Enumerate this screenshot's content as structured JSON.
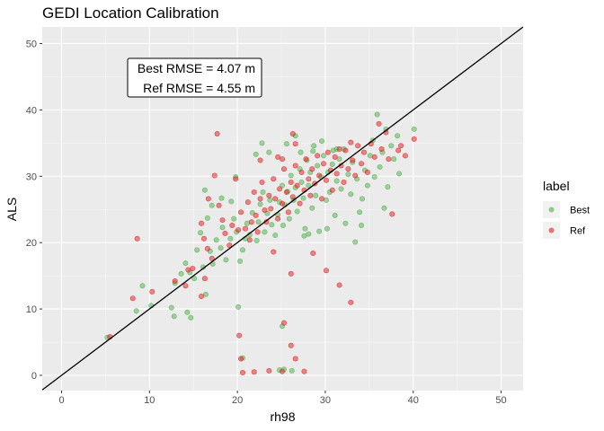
{
  "chart_data": {
    "type": "scatter",
    "title": "GEDI Location Calibration",
    "xlabel": "rh98",
    "ylabel": "ALS",
    "xlim": [
      -2.2,
      52.5
    ],
    "ylim": [
      -2.3,
      52.5
    ],
    "x_ticks": [
      0,
      10,
      20,
      30,
      40,
      50
    ],
    "y_ticks": [
      0,
      10,
      20,
      30,
      40,
      50
    ],
    "x_tick_labels": [
      "0",
      "10",
      "20",
      "30",
      "40",
      "50"
    ],
    "y_tick_labels": [
      "0",
      "10",
      "20",
      "30",
      "40",
      "50"
    ],
    "grid": true,
    "legend": {
      "title": "label",
      "position": "right"
    },
    "reference_line": {
      "type": "identity",
      "slope": 1,
      "intercept": 0,
      "color": "#000000"
    },
    "annotations": [
      "Best RMSE = 4.07 m",
      "Ref RMSE = 4.55 m"
    ],
    "series": [
      {
        "name": "Best",
        "color": "#4daf4a",
        "points": [
          [
            5.2,
            5.7
          ],
          [
            8.5,
            9.7
          ],
          [
            9.2,
            13.5
          ],
          [
            10.2,
            10.5
          ],
          [
            12.5,
            10.2
          ],
          [
            12.8,
            8.9
          ],
          [
            14.3,
            9.5
          ],
          [
            14.7,
            8.7
          ],
          [
            12.9,
            13.9
          ],
          [
            13.6,
            15.3
          ],
          [
            14.1,
            16.9
          ],
          [
            14.6,
            15.5
          ],
          [
            15.1,
            14.6
          ],
          [
            15.4,
            18.9
          ],
          [
            16.1,
            16.3
          ],
          [
            16.4,
            12.2
          ],
          [
            16.9,
            18.7
          ],
          [
            17.2,
            16.8
          ],
          [
            15.8,
            21.5
          ],
          [
            16.6,
            23.7
          ],
          [
            17.6,
            20.4
          ],
          [
            18.1,
            19.2
          ],
          [
            18.3,
            22.3
          ],
          [
            18.7,
            17.4
          ],
          [
            19.2,
            20.6
          ],
          [
            19.6,
            23.6
          ],
          [
            19.9,
            21.6
          ],
          [
            16.3,
            27.9
          ],
          [
            17.1,
            25.6
          ],
          [
            18.2,
            26.7
          ],
          [
            19.3,
            26.2
          ],
          [
            19.8,
            29.9
          ],
          [
            20.1,
            10.3
          ],
          [
            20.3,
            17.2
          ],
          [
            20.6,
            18.9
          ],
          [
            20.9,
            20.6
          ],
          [
            21.1,
            22.9
          ],
          [
            21.4,
            21.2
          ],
          [
            21.7,
            24.5
          ],
          [
            22.2,
            20.3
          ],
          [
            22.4,
            23.1
          ],
          [
            22.6,
            25.8
          ],
          [
            22.9,
            27.6
          ],
          [
            23.1,
            21.6
          ],
          [
            23.4,
            24.4
          ],
          [
            23.7,
            26.4
          ],
          [
            23.9,
            22.7
          ],
          [
            22.1,
            33.3
          ],
          [
            22.8,
            35.0
          ],
          [
            23.6,
            33.6
          ],
          [
            20.6,
            2.6
          ],
          [
            24.8,
            0.8
          ],
          [
            25.3,
            0.9
          ],
          [
            26.2,
            0.7
          ],
          [
            25.1,
            7.4
          ],
          [
            24.3,
            21.1
          ],
          [
            24.6,
            24.2
          ],
          [
            24.8,
            26.1
          ],
          [
            25.1,
            28.6
          ],
          [
            25.2,
            22.6
          ],
          [
            25.4,
            25.7
          ],
          [
            25.7,
            27.7
          ],
          [
            25.9,
            23.6
          ],
          [
            26.1,
            30.1
          ],
          [
            26.4,
            26.4
          ],
          [
            26.6,
            28.3
          ],
          [
            26.8,
            24.7
          ],
          [
            27.1,
            31.1
          ],
          [
            27.3,
            29.1
          ],
          [
            27.5,
            26.7
          ],
          [
            27.7,
            22.1
          ],
          [
            27.9,
            32.4
          ],
          [
            28.1,
            28.6
          ],
          [
            28.3,
            30.6
          ],
          [
            28.5,
            25.2
          ],
          [
            28.7,
            34.6
          ],
          [
            28.9,
            27.1
          ],
          [
            29.1,
            31.6
          ],
          [
            29.3,
            21.7
          ],
          [
            29.5,
            29.9
          ],
          [
            29.8,
            33.1
          ],
          [
            30.1,
            26.4
          ],
          [
            30.3,
            30.6
          ],
          [
            30.5,
            27.6
          ],
          [
            30.8,
            31.8
          ],
          [
            31.1,
            24.1
          ],
          [
            31.3,
            29.3
          ],
          [
            31.6,
            32.6
          ],
          [
            31.8,
            28.1
          ],
          [
            32.1,
            34.1
          ],
          [
            32.3,
            22.9
          ],
          [
            32.6,
            30.3
          ],
          [
            32.9,
            27.3
          ],
          [
            33.1,
            32.1
          ],
          [
            33.4,
            20.1
          ],
          [
            33.6,
            29.6
          ],
          [
            33.9,
            24.6
          ],
          [
            34.2,
            26.6
          ],
          [
            34.5,
            30.9
          ],
          [
            34.8,
            28.6
          ],
          [
            35.1,
            33.1
          ],
          [
            35.4,
            35.4
          ],
          [
            35.6,
            29.9
          ],
          [
            35.9,
            39.3
          ],
          [
            36.2,
            31.4
          ],
          [
            36.5,
            33.6
          ],
          [
            36.9,
            37.1
          ],
          [
            37.1,
            28.4
          ],
          [
            37.5,
            34.6
          ],
          [
            37.8,
            32.6
          ],
          [
            38.2,
            36.1
          ],
          [
            38.4,
            30.4
          ],
          [
            36.7,
            25.2
          ],
          [
            34.1,
            22.6
          ],
          [
            30.2,
            22.1
          ],
          [
            28.1,
            21.3
          ],
          [
            27.6,
            21.0
          ],
          [
            40.1,
            37.1
          ],
          [
            30.9,
            33.9
          ],
          [
            31.3,
            34.1
          ],
          [
            29.6,
            35.3
          ],
          [
            28.6,
            33.8
          ],
          [
            27.2,
            33.6
          ],
          [
            26.6,
            36.1
          ],
          [
            25.6,
            34.9
          ]
        ]
      },
      {
        "name": "Ref",
        "color": "#e41a1c",
        "points": [
          [
            5.5,
            5.8
          ],
          [
            8.1,
            11.6
          ],
          [
            8.6,
            20.6
          ],
          [
            10.3,
            12.6
          ],
          [
            12.9,
            14.2
          ],
          [
            14.1,
            13.5
          ],
          [
            14.4,
            15.9
          ],
          [
            14.9,
            16.1
          ],
          [
            15.9,
            11.9
          ],
          [
            16.3,
            14.6
          ],
          [
            16.6,
            19.1
          ],
          [
            17.1,
            17.6
          ],
          [
            15.9,
            22.9
          ],
          [
            16.2,
            20.6
          ],
          [
            16.7,
            26.6
          ],
          [
            17.4,
            30.1
          ],
          [
            17.7,
            36.4
          ],
          [
            17.9,
            25.6
          ],
          [
            18.3,
            23.4
          ],
          [
            18.6,
            21.4
          ],
          [
            19.1,
            19.6
          ],
          [
            19.4,
            22.6
          ],
          [
            19.8,
            29.6
          ],
          [
            20.1,
            21.9
          ],
          [
            20.2,
            6.0
          ],
          [
            20.4,
            2.5
          ],
          [
            20.6,
            0.4
          ],
          [
            21.9,
            0.5
          ],
          [
            23.6,
            0.7
          ],
          [
            25.1,
            0.6
          ],
          [
            26.1,
            4.5
          ],
          [
            26.6,
            2.5
          ],
          [
            27.6,
            0.6
          ],
          [
            25.3,
            7.9
          ],
          [
            26.1,
            15.3
          ],
          [
            24.1,
            18.6
          ],
          [
            20.4,
            24.6
          ],
          [
            20.9,
            22.1
          ],
          [
            21.2,
            26.1
          ],
          [
            21.4,
            20.4
          ],
          [
            21.6,
            23.1
          ],
          [
            21.9,
            27.6
          ],
          [
            22.1,
            24.1
          ],
          [
            22.3,
            21.6
          ],
          [
            22.6,
            26.6
          ],
          [
            22.8,
            29.1
          ],
          [
            23.1,
            24.9
          ],
          [
            23.3,
            23.1
          ],
          [
            23.6,
            27.1
          ],
          [
            23.8,
            25.1
          ],
          [
            24.1,
            29.6
          ],
          [
            24.3,
            26.6
          ],
          [
            24.6,
            23.6
          ],
          [
            24.8,
            28.1
          ],
          [
            25.1,
            25.9
          ],
          [
            25.3,
            31.1
          ],
          [
            25.6,
            27.6
          ],
          [
            25.8,
            24.6
          ],
          [
            26.1,
            29.1
          ],
          [
            26.3,
            26.9
          ],
          [
            26.6,
            31.6
          ],
          [
            26.8,
            28.6
          ],
          [
            27.1,
            25.9
          ],
          [
            27.3,
            30.6
          ],
          [
            27.6,
            27.9
          ],
          [
            27.8,
            32.6
          ],
          [
            28.1,
            29.6
          ],
          [
            28.3,
            27.1
          ],
          [
            28.5,
            31.1
          ],
          [
            28.8,
            28.9
          ],
          [
            29.1,
            33.1
          ],
          [
            29.3,
            30.1
          ],
          [
            29.6,
            26.6
          ],
          [
            29.8,
            31.9
          ],
          [
            30.1,
            29.4
          ],
          [
            30.3,
            33.6
          ],
          [
            30.6,
            30.9
          ],
          [
            30.8,
            27.9
          ],
          [
            31.1,
            32.9
          ],
          [
            31.3,
            30.4
          ],
          [
            31.6,
            34.1
          ],
          [
            31.8,
            31.6
          ],
          [
            32.1,
            29.1
          ],
          [
            32.3,
            33.9
          ],
          [
            32.6,
            31.1
          ],
          [
            32.9,
            35.1
          ],
          [
            33.1,
            32.4
          ],
          [
            33.4,
            30.1
          ],
          [
            33.7,
            34.6
          ],
          [
            34.1,
            31.9
          ],
          [
            34.4,
            33.6
          ],
          [
            34.8,
            30.6
          ],
          [
            35.2,
            34.9
          ],
          [
            35.6,
            32.9
          ],
          [
            36.1,
            37.9
          ],
          [
            36.4,
            34.1
          ],
          [
            36.9,
            36.6
          ],
          [
            37.2,
            32.6
          ],
          [
            37.6,
            24.3
          ],
          [
            38.3,
            33.9
          ],
          [
            38.6,
            34.6
          ],
          [
            39.1,
            33.1
          ],
          [
            40.1,
            35.6
          ],
          [
            30.1,
            15.8
          ],
          [
            31.6,
            13.6
          ],
          [
            32.9,
            11.0
          ],
          [
            28.6,
            18.4
          ],
          [
            26.3,
            36.4
          ],
          [
            26.6,
            34.9
          ],
          [
            25.1,
            32.6
          ],
          [
            24.6,
            32.9
          ],
          [
            22.6,
            32.4
          ]
        ]
      }
    ]
  }
}
